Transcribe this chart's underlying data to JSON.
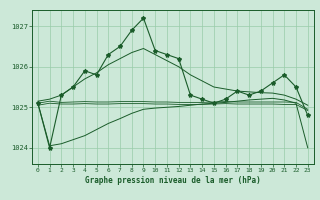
{
  "title": "Graphe pression niveau de la mer (hPa)",
  "bg_color": "#cce8d8",
  "plot_bg_color": "#cce8d8",
  "line_color": "#1a5c2a",
  "grid_color": "#99ccaa",
  "xlim": [
    -0.5,
    23.5
  ],
  "ylim": [
    1023.6,
    1027.4
  ],
  "yticks": [
    1024,
    1025,
    1026,
    1027
  ],
  "xticks": [
    0,
    1,
    2,
    3,
    4,
    5,
    6,
    7,
    8,
    9,
    10,
    11,
    12,
    13,
    14,
    15,
    16,
    17,
    18,
    19,
    20,
    21,
    22,
    23
  ],
  "main_data": [
    1025.1,
    1024.0,
    1025.3,
    1025.5,
    1025.9,
    1025.8,
    1026.3,
    1026.5,
    1026.9,
    1027.2,
    1026.4,
    1026.3,
    1026.2,
    1025.3,
    1025.2,
    1025.1,
    1025.2,
    1025.4,
    1025.3,
    1025.4,
    1025.6,
    1025.8,
    1025.5,
    1024.8
  ],
  "envelope_top": [
    1025.15,
    1025.2,
    1025.3,
    1025.5,
    1025.7,
    1025.85,
    1026.05,
    1026.2,
    1026.35,
    1026.45,
    1026.3,
    1026.15,
    1026.0,
    1025.8,
    1025.65,
    1025.5,
    1025.45,
    1025.4,
    1025.38,
    1025.36,
    1025.35,
    1025.3,
    1025.2,
    1025.05
  ],
  "envelope_bottom": [
    1025.1,
    1024.05,
    1024.1,
    1024.2,
    1024.3,
    1024.45,
    1024.6,
    1024.72,
    1024.85,
    1024.95,
    1024.98,
    1025.0,
    1025.02,
    1025.05,
    1025.08,
    1025.1,
    1025.12,
    1025.15,
    1025.18,
    1025.2,
    1025.22,
    1025.18,
    1025.1,
    1024.0
  ],
  "line_flat1": [
    1025.1,
    1025.15,
    1025.12,
    1025.13,
    1025.14,
    1025.13,
    1025.13,
    1025.14,
    1025.14,
    1025.14,
    1025.13,
    1025.13,
    1025.12,
    1025.12,
    1025.12,
    1025.13,
    1025.14,
    1025.13,
    1025.13,
    1025.13,
    1025.13,
    1025.13,
    1025.12,
    1024.95
  ],
  "line_flat2": [
    1025.05,
    1025.1,
    1025.08,
    1025.08,
    1025.09,
    1025.08,
    1025.08,
    1025.09,
    1025.09,
    1025.09,
    1025.08,
    1025.08,
    1025.07,
    1025.07,
    1025.07,
    1025.08,
    1025.09,
    1025.08,
    1025.08,
    1025.08,
    1025.08,
    1025.07,
    1025.07,
    1024.92
  ]
}
